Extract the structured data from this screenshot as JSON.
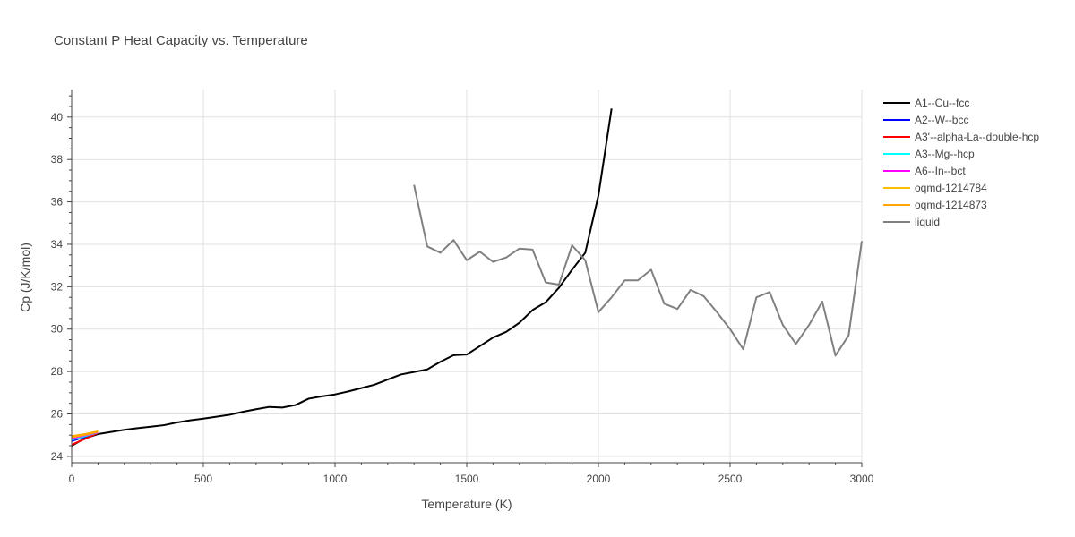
{
  "chart_data": {
    "type": "line",
    "title": "Constant P Heat Capacity vs. Temperature",
    "xlabel": "Temperature (K)",
    "ylabel": "Cp (J/K/mol)",
    "xlim": [
      0,
      3000
    ],
    "ylim": [
      23.7,
      41.3
    ],
    "x_ticks": [
      0,
      500,
      1000,
      1500,
      2000,
      2500,
      3000
    ],
    "y_ticks": [
      24,
      26,
      28,
      30,
      32,
      34,
      36,
      38,
      40
    ],
    "x_tick_labels": [
      "0",
      "500",
      "1000",
      "1500",
      "2000",
      "2500",
      "3000"
    ],
    "y_tick_labels": [
      "24",
      "26",
      "28",
      "30",
      "32",
      "34",
      "36",
      "38",
      "40"
    ],
    "grid": true,
    "legend_position": "right",
    "series": [
      {
        "name": "A1--Cu--fcc",
        "color": "#000000",
        "x": [
          0,
          50,
          100,
          150,
          200,
          250,
          300,
          350,
          400,
          450,
          500,
          550,
          600,
          650,
          700,
          750,
          800,
          850,
          900,
          950,
          1000,
          1050,
          1100,
          1150,
          1200,
          1250,
          1300,
          1350,
          1400,
          1450,
          1500,
          1550,
          1600,
          1650,
          1700,
          1750,
          1800,
          1850,
          1900,
          1950,
          2000,
          2050
        ],
        "y": [
          24.5,
          24.85,
          25.05,
          25.15,
          25.25,
          25.33,
          25.4,
          25.47,
          25.6,
          25.7,
          25.78,
          25.87,
          25.96,
          26.1,
          26.22,
          26.33,
          26.3,
          26.42,
          26.72,
          26.83,
          26.92,
          27.06,
          27.22,
          27.38,
          27.62,
          27.86,
          27.98,
          28.1,
          28.46,
          28.77,
          28.8,
          29.2,
          29.6,
          29.87,
          30.3,
          30.9,
          31.27,
          31.95,
          32.8,
          33.6,
          36.3,
          40.4
        ]
      },
      {
        "name": "A2--W--bcc",
        "color": "#0000ff",
        "x": [
          0,
          50,
          100
        ],
        "y": [
          24.72,
          24.92,
          25.12
        ]
      },
      {
        "name": "A3'--alpha-La--double-hcp",
        "color": "#ff0000",
        "x": [
          0,
          50,
          100
        ],
        "y": [
          24.55,
          24.82,
          25.1
        ]
      },
      {
        "name": "A3--Mg--hcp",
        "color": "#00ffff",
        "x": [
          0,
          50,
          100
        ],
        "y": [
          24.78,
          24.95,
          25.13
        ]
      },
      {
        "name": "A6--In--bct",
        "color": "#ff00ff",
        "x": [
          0,
          50,
          100
        ],
        "y": [
          24.85,
          24.99,
          25.14
        ]
      },
      {
        "name": "oqmd-1214784",
        "color": "#ffbf00",
        "x": [
          0,
          50,
          100
        ],
        "y": [
          24.9,
          25.02,
          25.16
        ]
      },
      {
        "name": "oqmd-1214873",
        "color": "#ffa500",
        "x": [
          0,
          50,
          100
        ],
        "y": [
          24.95,
          25.05,
          25.18
        ]
      },
      {
        "name": "liquid",
        "color": "#808080",
        "x": [
          1300,
          1350,
          1400,
          1450,
          1500,
          1550,
          1600,
          1650,
          1700,
          1750,
          1800,
          1850,
          1900,
          1950,
          2000,
          2050,
          2100,
          2150,
          2200,
          2250,
          2300,
          2350,
          2400,
          2450,
          2500,
          2550,
          2600,
          2650,
          2700,
          2750,
          2800,
          2850,
          2900,
          2950,
          3000
        ],
        "y": [
          36.8,
          33.9,
          33.6,
          34.2,
          33.25,
          33.65,
          33.17,
          33.38,
          33.8,
          33.75,
          32.2,
          32.1,
          33.95,
          33.25,
          30.8,
          31.5,
          32.3,
          32.3,
          32.8,
          31.2,
          30.95,
          31.85,
          31.55,
          30.8,
          30.0,
          29.05,
          31.5,
          31.75,
          30.2,
          29.3,
          30.2,
          31.3,
          28.75,
          29.7,
          34.15
        ]
      }
    ]
  }
}
